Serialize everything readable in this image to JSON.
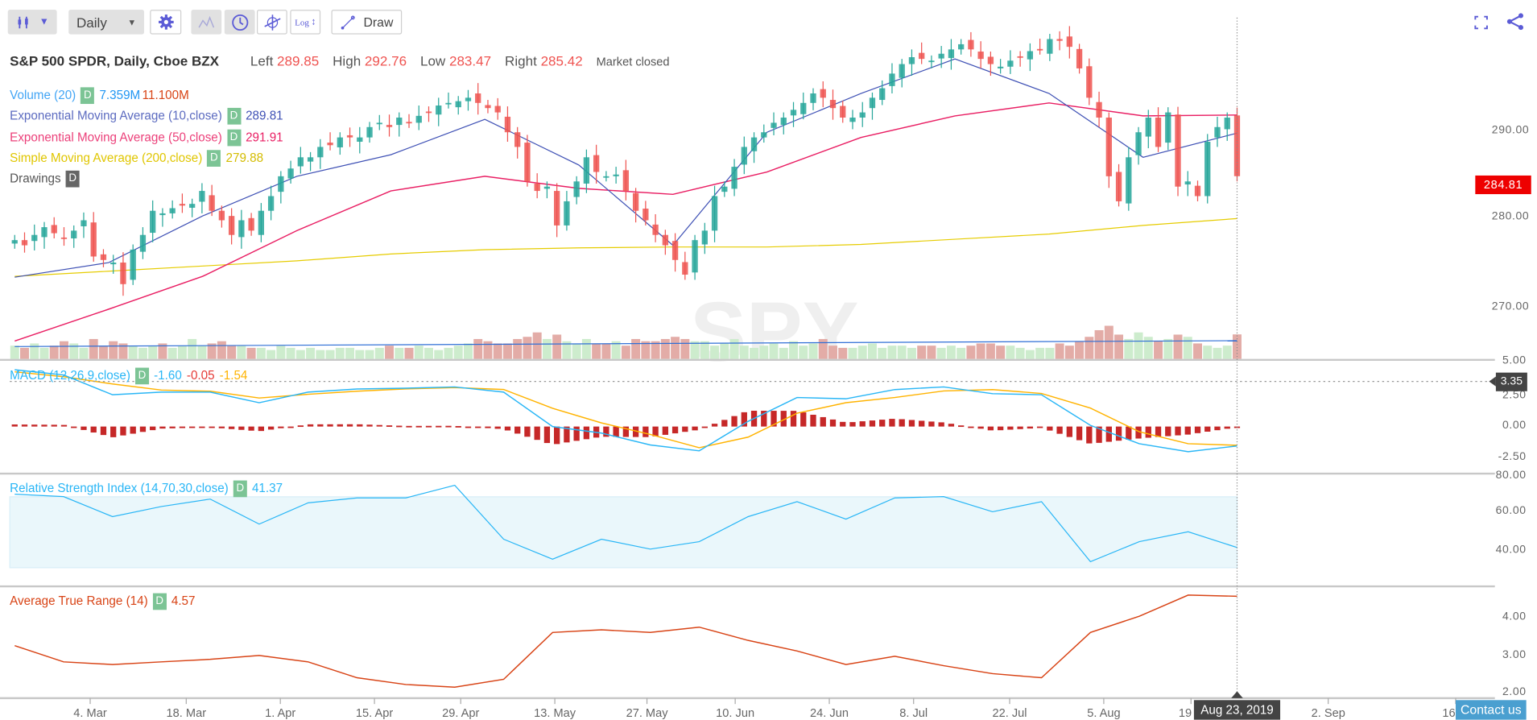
{
  "toolbar": {
    "chart_type_icon": "candles-icon",
    "interval": "Daily",
    "settings_icon": "gear-icon",
    "draw_label": "Draw",
    "log_label": "Log",
    "accent": "#5b5bd6"
  },
  "header": {
    "title": "S&P 500 SPDR, Daily, Cboe BZX",
    "left_label": "Left",
    "left_value": "289.85",
    "high_label": "High",
    "high_value": "292.76",
    "low_label": "Low",
    "low_value": "283.47",
    "right_label": "Right",
    "right_value": "285.42",
    "status": "Market closed"
  },
  "legends": {
    "volume": {
      "label": "Volume (20)",
      "badge": "D",
      "avg": "7.359M",
      "value": "11.100M"
    },
    "ema10": {
      "label": "Exponential Moving Average (10,close)",
      "badge": "D",
      "value": "289.81",
      "color": "#3f51b5"
    },
    "ema50": {
      "label": "Exponential Moving Average (50,close)",
      "badge": "D",
      "value": "291.91",
      "color": "#e91e63"
    },
    "sma200": {
      "label": "Simple Moving Average (200,close)",
      "badge": "D",
      "value": "279.88",
      "color": "#e6cc00"
    },
    "drawings": {
      "label": "Drawings",
      "badge": "D"
    },
    "macd": {
      "label": "MACD (12,26,9,close)",
      "badge": "D",
      "macd": "-1.60",
      "hist": "-0.05",
      "signal": "-1.54"
    },
    "rsi": {
      "label": "Relative Strength Index (14,70,30,close)",
      "badge": "D",
      "value": "41.37"
    },
    "atr": {
      "label": "Average True Range (14)",
      "badge": "D",
      "value": "4.57"
    }
  },
  "watermark": "SPY",
  "price_axis": [
    "290.00",
    "280.00",
    "270.00"
  ],
  "macd_axis": [
    "5.00",
    "2.50",
    "0.00",
    "-2.50"
  ],
  "rsi_axis": [
    "80.00",
    "60.00",
    "40.00"
  ],
  "atr_axis": [
    "4.00",
    "3.00",
    "2.00"
  ],
  "x_axis": [
    "4. Mar",
    "18. Mar",
    "1. Apr",
    "15. Apr",
    "29. Apr",
    "13. May",
    "27. May",
    "10. Jun",
    "24. Jun",
    "8. Jul",
    "22. Jul",
    "5. Aug",
    "19",
    "2. Sep",
    "16"
  ],
  "crosshair": {
    "date": "Aug 23, 2019",
    "price": "284.81",
    "macd_value": "3.35"
  },
  "contact_label": "Contact us",
  "chart_data": {
    "type": "candlestick",
    "title": "S&P 500 SPDR, Daily, Cboe BZX",
    "x_range": [
      "Feb 2019",
      "Aug 23, 2019"
    ],
    "price_ylim": [
      264,
      303
    ],
    "colors": {
      "up": "#26a69a",
      "down": "#ef5350"
    },
    "close": [
      277.4,
      276.8,
      278.0,
      278.9,
      278.2,
      277.6,
      278.5,
      279.7,
      275.5,
      275.1,
      274.8,
      272.3,
      276.3,
      278.0,
      280.8,
      280.5,
      281.1,
      281.4,
      281.6,
      283.1,
      280.8,
      279.7,
      278.0,
      279.7,
      278.5,
      280.8,
      282.5,
      284.8,
      285.7,
      287.0,
      287.0,
      288.2,
      288.4,
      289.3,
      289.3,
      289.3,
      290.5,
      291.0,
      290.5,
      291.6,
      291.0,
      291.8,
      292.2,
      293.0,
      293.3,
      293.5,
      293.9,
      293.3,
      292.7,
      292.2,
      289.9,
      288.2,
      284.2,
      283.1,
      283.6,
      279.1,
      281.9,
      284.2,
      287.0,
      285.3,
      284.8,
      285.0,
      283.1,
      280.8,
      279.7,
      278.0,
      276.8,
      275.1,
      273.4,
      277.4,
      278.5,
      282.5,
      283.6,
      285.9,
      288.2,
      289.3,
      289.9,
      291.0,
      291.6,
      292.5,
      293.3,
      294.4,
      293.9,
      292.7,
      291.6,
      291.6,
      292.2,
      293.9,
      295.0,
      296.7,
      297.8,
      298.6,
      298.4,
      298.2,
      299.0,
      299.5,
      300.1,
      299.5,
      298.4,
      297.8,
      297.5,
      298.2,
      298.6,
      299.3,
      299.5,
      300.7,
      300.5,
      299.8,
      297.3,
      293.9,
      291.6,
      284.8,
      281.9,
      287.0,
      289.9,
      291.6,
      288.2,
      292.2,
      283.6,
      284.2,
      282.5,
      288.8,
      290.5,
      291.6,
      284.81
    ],
    "volume_millions": [
      6,
      5,
      7,
      5,
      6,
      8,
      7,
      5,
      9,
      6,
      8,
      7,
      6,
      5,
      6,
      7,
      5,
      6,
      9,
      6,
      7,
      8,
      6,
      6,
      5,
      5,
      4,
      6,
      5,
      4,
      5,
      4,
      4,
      5,
      5,
      4,
      4,
      5,
      6,
      5,
      5,
      6,
      5,
      4,
      5,
      6,
      7,
      9,
      8,
      7,
      7,
      9,
      10,
      12,
      9,
      11,
      8,
      7,
      9,
      7,
      7,
      8,
      6,
      9,
      8,
      8,
      9,
      10,
      9,
      8,
      8,
      6,
      7,
      9,
      6,
      5,
      6,
      7,
      5,
      8,
      6,
      7,
      9,
      6,
      5,
      5,
      6,
      7,
      5,
      6,
      6,
      5,
      6,
      6,
      5,
      6,
      5,
      6,
      7,
      7,
      6,
      6,
      5,
      4,
      5,
      5,
      7,
      6,
      8,
      10,
      13,
      15,
      11,
      9,
      12,
      10,
      8,
      9,
      11,
      10,
      7,
      6,
      5,
      6,
      11.1
    ],
    "volume_avg_millions": 7.359,
    "ema10": [
      273.1,
      274.8,
      280.2,
      284.8,
      287.3,
      291.4,
      286.1,
      276.8,
      289.9,
      294.4,
      298.4,
      294.4,
      287.0,
      289.8
    ],
    "ema50": [
      265.7,
      269.4,
      273.2,
      278.5,
      283.1,
      284.8,
      283.4,
      282.7,
      285.3,
      289.3,
      291.8,
      293.3,
      291.8,
      291.9
    ],
    "sma200": [
      273.2,
      273.8,
      274.4,
      275.0,
      275.8,
      276.3,
      276.5,
      276.6,
      276.6,
      276.9,
      277.5,
      278.1,
      279.1,
      279.9
    ],
    "macd": {
      "ylim": [
        -3.5,
        5.2
      ],
      "macd": [
        4.67,
        4.24,
        2.61,
        2.83,
        2.83,
        1.96,
        2.83,
        3.09,
        3.15,
        3.26,
        2.83,
        0.0,
        -0.54,
        -1.52,
        -2.0,
        0.43,
        2.39,
        2.28,
        3.04,
        3.26,
        2.7,
        2.61,
        0.1,
        -1.41,
        -2.07,
        -1.6
      ],
      "signal": [
        4.5,
        4.1,
        3.5,
        3.0,
        2.9,
        2.35,
        2.65,
        2.9,
        3.1,
        3.2,
        3.05,
        1.5,
        0.3,
        -0.65,
        -1.74,
        -0.87,
        1.1,
        1.96,
        2.39,
        2.93,
        3.04,
        2.72,
        1.52,
        -0.43,
        -1.41,
        -1.54
      ],
      "colors": {
        "macd": "#29b6f6",
        "signal": "#ffb300",
        "hist": "#c62828"
      }
    },
    "rsi": {
      "ylim": [
        20,
        82
      ],
      "overbought": 70,
      "oversold": 30,
      "values": [
        71.5,
        70.1,
        58.8,
        64.5,
        68.7,
        54.6,
        66.6,
        69.4,
        69.4,
        76.5,
        46.1,
        34.8,
        46.1,
        40.5,
        44.7,
        58.8,
        67.3,
        57.4,
        69.4,
        70.1,
        61.6,
        67.3,
        33.4,
        44.7,
        50.3,
        41.37
      ],
      "color": "#29b6f6"
    },
    "atr": {
      "ylim": [
        2.0,
        4.8
      ],
      "values": [
        3.26,
        2.83,
        2.76,
        2.83,
        2.9,
        3.0,
        2.83,
        2.41,
        2.23,
        2.16,
        2.37,
        3.61,
        3.68,
        3.61,
        3.75,
        3.4,
        3.12,
        2.76,
        2.98,
        2.73,
        2.52,
        2.41,
        3.61,
        4.04,
        4.6,
        4.57
      ],
      "color": "#d84315"
    }
  }
}
